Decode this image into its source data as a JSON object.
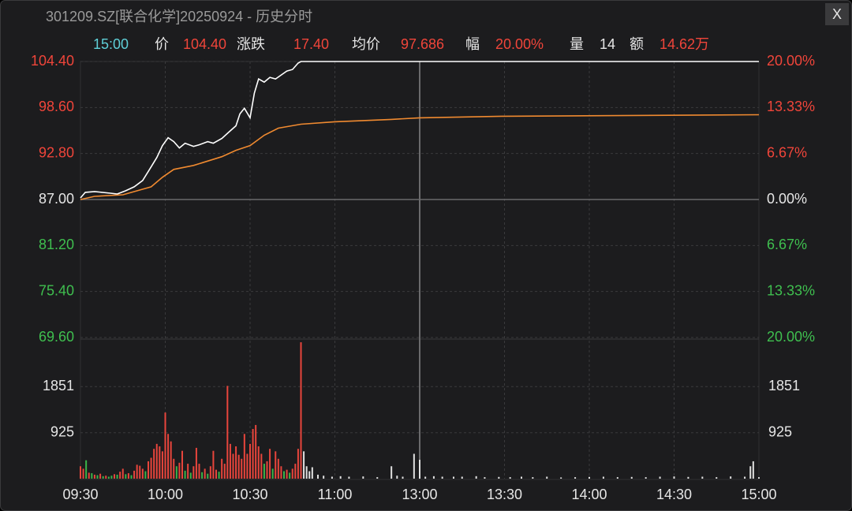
{
  "header": {
    "title": "301209.SZ[联合化学]20250924 - 历史分时",
    "close": "X",
    "info": [
      {
        "text": "15:00",
        "color": "#5fd0d8"
      },
      {
        "text": "价",
        "color": "#e6e6e6"
      },
      {
        "text": "104.40",
        "color": "#f0453a"
      },
      {
        "text": "涨跌",
        "color": "#e6e6e6"
      },
      {
        "text": "17.40",
        "color": "#f0453a"
      },
      {
        "text": "均价",
        "color": "#e6e6e6"
      },
      {
        "text": "97.686",
        "color": "#f0453a"
      },
      {
        "text": "幅",
        "color": "#e6e6e6"
      },
      {
        "text": "20.00%",
        "color": "#f0453a"
      },
      {
        "text": "量",
        "color": "#e6e6e6"
      },
      {
        "text": "14",
        "color": "#e6e6e6"
      },
      {
        "text": "额",
        "color": "#e6e6e6"
      },
      {
        "text": "14.62万",
        "color": "#f0453a"
      }
    ]
  },
  "chart_data": [
    {
      "type": "line",
      "xlim": [
        0,
        240
      ],
      "ylim": [
        69.6,
        104.4
      ],
      "yticks": [
        {
          "value": 104.4,
          "label": "104.40"
        },
        {
          "value": 98.6,
          "label": "98.60"
        },
        {
          "value": 92.8,
          "label": "92.80"
        },
        {
          "value": 87,
          "label": "87.00"
        },
        {
          "value": 81.2,
          "label": "81.20"
        },
        {
          "value": 75.4,
          "label": "75.40"
        },
        {
          "value": 69.6,
          "label": "69.60"
        }
      ],
      "y2lim": [
        -20,
        20
      ],
      "y2ticks": [
        {
          "value": 20,
          "label": "20.00%"
        },
        {
          "value": 13.33,
          "label": "13.33%"
        },
        {
          "value": 6.67,
          "label": "6.67%"
        },
        {
          "value": 0,
          "label": "0.00%"
        },
        {
          "value": -6.67,
          "label": "6.67%"
        },
        {
          "value": -13.33,
          "label": "13.33%"
        },
        {
          "value": -20,
          "label": "20.00%"
        }
      ],
      "grid": true,
      "series": [
        {
          "color": "#ffffff",
          "x": [
            0,
            1.7,
            5,
            10.6,
            13,
            16,
            19,
            22,
            24.6,
            27,
            29,
            31,
            33,
            35,
            37,
            40,
            42,
            45,
            47,
            50,
            52.5,
            55,
            56.4,
            58,
            60,
            61.5,
            63,
            65,
            67,
            69,
            71,
            73,
            75,
            77,
            78,
            240
          ],
          "values": [
            87.2,
            87.9,
            88.0,
            87.8,
            87.7,
            88.1,
            88.6,
            89.4,
            90.9,
            92.3,
            93.8,
            94.8,
            94.3,
            93.5,
            94.1,
            93.7,
            93.9,
            94.3,
            94.1,
            94.7,
            95.5,
            96.3,
            97.8,
            98.5,
            97.3,
            100.4,
            102.2,
            101.8,
            102.4,
            102.2,
            102.7,
            103.2,
            103.4,
            104.2,
            104.4,
            104.4
          ]
        },
        {
          "color": "#f08a30",
          "x": [
            0,
            5,
            15,
            25,
            29,
            33,
            40,
            50,
            55,
            60,
            65,
            70,
            78,
            90,
            110,
            120,
            150,
            240
          ],
          "values": [
            87.0,
            87.4,
            87.6,
            88.6,
            89.8,
            90.8,
            91.3,
            92.4,
            93.2,
            93.8,
            95.1,
            96.0,
            96.5,
            96.8,
            97.1,
            97.3,
            97.5,
            97.686
          ]
        }
      ]
    },
    {
      "type": "bar",
      "xlim": [
        0,
        240
      ],
      "ylim": [
        0,
        2776
      ],
      "yticks": [
        925,
        1851
      ],
      "y2ticks": [
        925,
        1851
      ],
      "xticks": [
        {
          "value": 0,
          "label": "09:30"
        },
        {
          "value": 30,
          "label": "10:00"
        },
        {
          "value": 60,
          "label": "10:30"
        },
        {
          "value": 90,
          "label": "11:00"
        },
        {
          "value": 120,
          "label": "13:00"
        },
        {
          "value": 150,
          "label": "13:30"
        },
        {
          "value": 180,
          "label": "14:00"
        },
        {
          "value": 210,
          "label": "14:30"
        },
        {
          "value": 240,
          "label": "15:00"
        }
      ],
      "series": [
        {
          "color": "#e8453c",
          "x": [
            0,
            1,
            3,
            5,
            7,
            9,
            12,
            14,
            15,
            17,
            19,
            20,
            21,
            22,
            24,
            25,
            26,
            27,
            28,
            29,
            30,
            31,
            32,
            33,
            35,
            36,
            38,
            40,
            41,
            42,
            44,
            46,
            47,
            48,
            50,
            51,
            52,
            53,
            54,
            55,
            56,
            57,
            58,
            59,
            60,
            61,
            62,
            63,
            64,
            66,
            67,
            69,
            70,
            71,
            73,
            75,
            76,
            77,
            78
          ],
          "values": [
            250,
            200,
            120,
            80,
            100,
            60,
            90,
            140,
            200,
            110,
            160,
            280,
            260,
            200,
            350,
            420,
            600,
            700,
            650,
            550,
            1330,
            900,
            750,
            400,
            320,
            560,
            300,
            250,
            620,
            300,
            200,
            250,
            560,
            180,
            400,
            300,
            1866,
            700,
            500,
            650,
            480,
            400,
            900,
            500,
            700,
            1000,
            1080,
            650,
            500,
            350,
            600,
            550,
            400,
            250,
            180,
            200,
            300,
            600,
            2744
          ]
        },
        {
          "color": "#3bb54a",
          "x": [
            2,
            4,
            6,
            8,
            10,
            11,
            13,
            16,
            18,
            23,
            34,
            37,
            39,
            43,
            45,
            49,
            65,
            68,
            72,
            74
          ],
          "values": [
            370,
            110,
            70,
            50,
            40,
            60,
            80,
            90,
            70,
            150,
            250,
            160,
            120,
            130,
            100,
            140,
            300,
            200,
            150,
            120
          ]
        },
        {
          "color": "#e0e0e0",
          "x": [
            79,
            80,
            81,
            82,
            84,
            86,
            89,
            92,
            95,
            100,
            105,
            110,
            112,
            114,
            118,
            120,
            122,
            125,
            128,
            132,
            135,
            140,
            143,
            148,
            152,
            156,
            160,
            165,
            170,
            175,
            180,
            185,
            190,
            195,
            200,
            205,
            210,
            215,
            220,
            225,
            230,
            235,
            237,
            238,
            240
          ],
          "values": [
            550,
            250,
            150,
            230,
            80,
            60,
            40,
            50,
            40,
            45,
            30,
            250,
            60,
            40,
            500,
            380,
            40,
            50,
            40,
            40,
            40,
            50,
            30,
            35,
            30,
            40,
            30,
            40,
            25,
            30,
            35,
            40,
            30,
            35,
            30,
            40,
            45,
            35,
            40,
            30,
            45,
            40,
            250,
            350,
            30
          ]
        }
      ]
    }
  ]
}
